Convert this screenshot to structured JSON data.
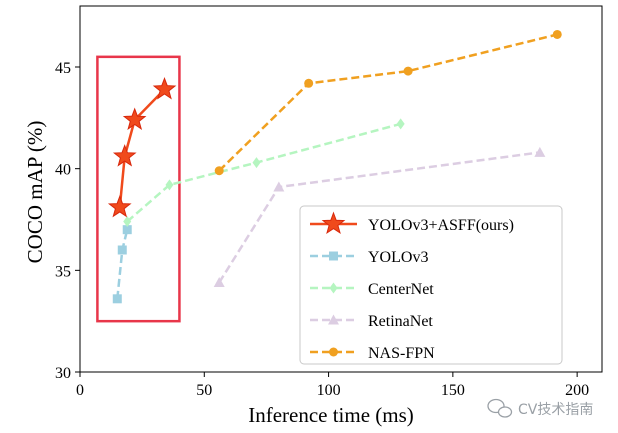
{
  "chart_data": {
    "type": "line",
    "title": "",
    "xlabel": "Inference time (ms)",
    "ylabel": "COCO mAP (%)",
    "xlim": [
      0,
      210
    ],
    "ylim": [
      30,
      48
    ],
    "x_ticks": [
      0,
      50,
      100,
      150,
      200
    ],
    "y_ticks": [
      30,
      35,
      40,
      45
    ],
    "grid": false,
    "legend_position": "lower-right",
    "highlight_box": {
      "x_range": [
        7,
        40
      ],
      "y_range": [
        32.5,
        45.5
      ],
      "color": "#e8364a"
    },
    "series": [
      {
        "name": "YOLOv3+ASFF(ours)",
        "color": "#f04a1c",
        "marker": "star",
        "dashed": false,
        "x": [
          16,
          18,
          22,
          34
        ],
        "y": [
          38.1,
          40.6,
          42.4,
          43.9
        ]
      },
      {
        "name": "YOLOv3",
        "color": "#9ccfe0",
        "marker": "square",
        "dashed": true,
        "x": [
          15,
          17,
          19
        ],
        "y": [
          33.6,
          36.0,
          37.0
        ]
      },
      {
        "name": "CenterNet",
        "color": "#b5f5c0",
        "marker": "diamond",
        "dashed": true,
        "x": [
          19,
          36,
          71,
          129
        ],
        "y": [
          37.4,
          39.2,
          40.3,
          42.2
        ]
      },
      {
        "name": "RetinaNet",
        "color": "#dccde2",
        "marker": "triangle",
        "dashed": true,
        "x": [
          56,
          80,
          185
        ],
        "y": [
          34.4,
          39.1,
          40.8
        ]
      },
      {
        "name": "NAS-FPN",
        "color": "#f0a020",
        "marker": "circle",
        "dashed": true,
        "x": [
          56,
          92,
          132,
          192
        ],
        "y": [
          39.9,
          44.2,
          44.8,
          46.6
        ]
      }
    ]
  },
  "watermark": {
    "text": "CV技术指南",
    "icon": "wechat-icon"
  }
}
